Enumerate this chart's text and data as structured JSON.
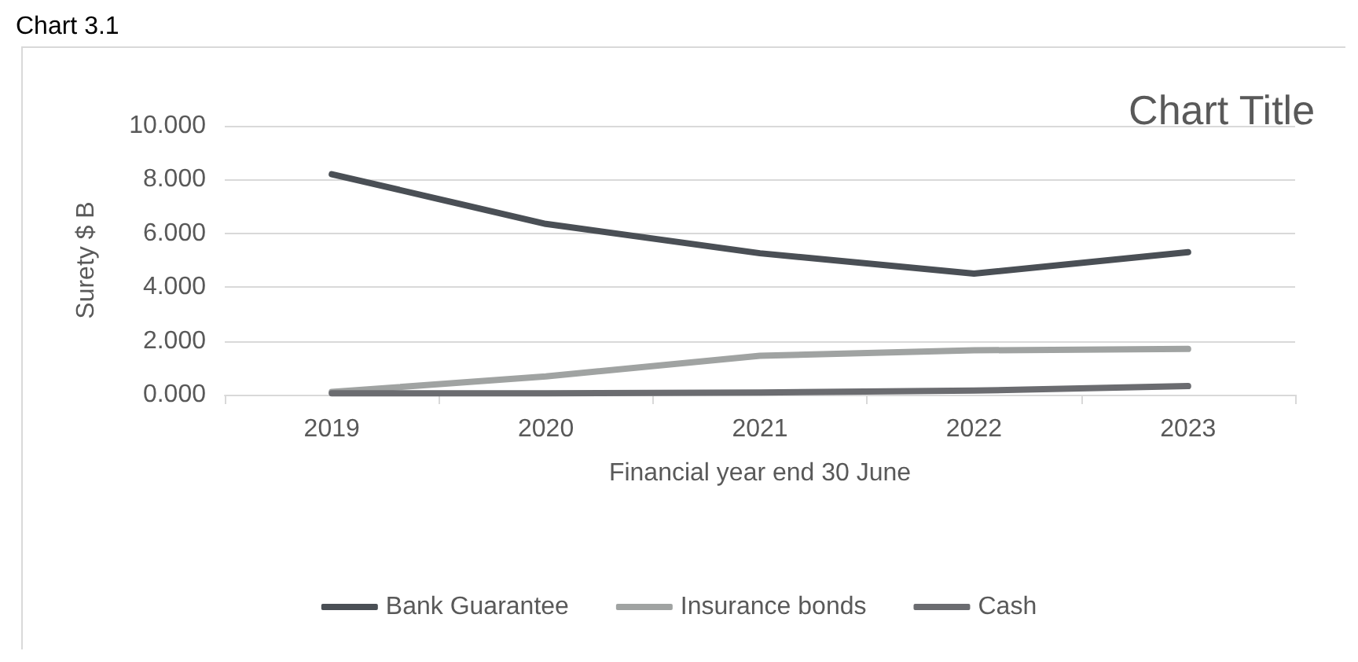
{
  "chart_data": {
    "type": "line",
    "title": "Chart Title",
    "xlabel": "Financial year end 30 June",
    "ylabel": "Surety $ B",
    "annotations": [
      "Chart 3.1"
    ],
    "categories": [
      "2019",
      "2020",
      "2021",
      "2022",
      "2023"
    ],
    "series": [
      {
        "name": "Bank Guarantee",
        "color": "#4a4f55",
        "values": [
          8.2,
          6.35,
          5.26,
          4.5,
          5.3
        ]
      },
      {
        "name": "Insurance bonds",
        "color": "#a0a3a2",
        "values": [
          0.1,
          0.68,
          1.45,
          1.65,
          1.7
        ]
      },
      {
        "name": "Cash",
        "color": "#6b6c70",
        "values": [
          0.05,
          0.05,
          0.08,
          0.15,
          0.32
        ]
      }
    ],
    "ylim": [
      0,
      10
    ],
    "yticks": [
      {
        "value": 0,
        "label": "0.000"
      },
      {
        "value": 2,
        "label": "2.000"
      },
      {
        "value": 4,
        "label": "4.000"
      },
      {
        "value": 6,
        "label": "6.000"
      },
      {
        "value": 8,
        "label": "8.000"
      },
      {
        "value": 10,
        "label": "10.000"
      }
    ],
    "grid": "y",
    "legend": "bottom",
    "marker": "none",
    "line_style": "solid"
  }
}
